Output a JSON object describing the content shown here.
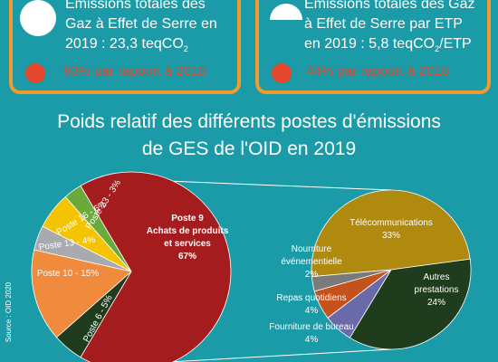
{
  "cards": [
    {
      "lines": [
        "Émissions totales des",
        "Gaz à Effet de Serre en",
        "2019 : 23,3 teqCO"
      ],
      "sub": "2",
      "after": "",
      "trend": "93% par rapport à 2018"
    },
    {
      "lines": [
        "Émissions totales des Gaz",
        "à Effet de Serre par ETP",
        "en 2019 : 5,8 teqCO"
      ],
      "sub": "2",
      "after": "/ETP",
      "trend": "44% par rapport à 2018"
    }
  ],
  "title_lines": [
    "Poids relatif des différents postes d'émissions",
    "de GES de l'OID en 2019"
  ],
  "source": "Source : OID 2020",
  "chart_data": [
    {
      "type": "pie",
      "labels": [
        [
          "Poste 9",
          "Achats de produits",
          "et services",
          "67%"
        ],
        [
          "Poste 6 - 5%"
        ],
        [
          "Poste 10 - 15%"
        ],
        [
          "Poste 13 - 4%"
        ],
        [
          "Poste 16 - 6%"
        ],
        [
          "Poste 23 - 3%"
        ]
      ],
      "values": [
        67,
        5,
        15,
        4,
        6,
        3
      ],
      "colors": [
        "#a51c1e",
        "#1f3d1c",
        "#f08a3c",
        "#a9a9b0",
        "#f5c400",
        "#6aaa3a"
      ]
    },
    {
      "type": "pie",
      "labels": [
        [
          "Télécommunications",
          "33%"
        ],
        [
          "Autres",
          "prestations",
          "24%"
        ],
        [
          "Fourniture de bureau",
          "4%"
        ],
        [
          "Repas quotidiens",
          "4%"
        ],
        [
          "Nourriture",
          "événementielle",
          "2%"
        ]
      ],
      "values": [
        33,
        24,
        4,
        4,
        2
      ],
      "colors": [
        "#b0890f",
        "#1f3d1c",
        "#6b6aa8",
        "#c4521c",
        "#7a7a7a"
      ]
    }
  ]
}
